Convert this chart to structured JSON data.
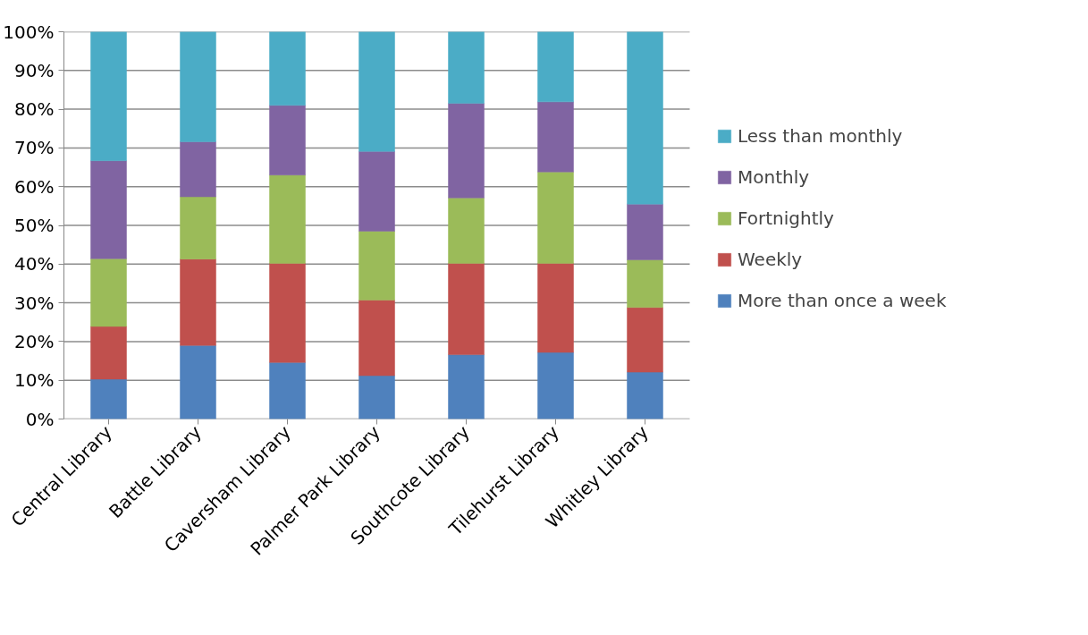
{
  "chart_data": {
    "type": "bar",
    "stacked": true,
    "categories": [
      "Central Library",
      "Battle Library",
      "Caversham Library",
      "Palmer Park Library",
      "Southcote Library",
      "Tilehurst Library",
      "Whitley Library"
    ],
    "series": [
      {
        "name": "More than once a week",
        "color": "#4f81bd",
        "values": [
          10.3,
          19.0,
          14.6,
          11.2,
          16.6,
          17.2,
          12.1
        ]
      },
      {
        "name": "Weekly",
        "color": "#c0504d",
        "values": [
          13.6,
          22.3,
          25.6,
          19.5,
          23.6,
          23.0,
          16.7
        ]
      },
      {
        "name": "Fortnightly",
        "color": "#9bbb59",
        "values": [
          17.5,
          16.1,
          22.8,
          17.8,
          16.9,
          23.6,
          12.3
        ]
      },
      {
        "name": "Monthly",
        "color": "#8064a2",
        "values": [
          25.3,
          14.2,
          18.0,
          20.6,
          24.4,
          18.1,
          14.4
        ]
      },
      {
        "name": "Less than monthly",
        "color": "#4bacc6",
        "values": [
          33.3,
          28.4,
          19.0,
          30.9,
          18.5,
          18.1,
          44.5
        ]
      }
    ],
    "ylim": [
      0,
      100
    ],
    "yticks": [
      {
        "value": 0,
        "label": "0%"
      },
      {
        "value": 10,
        "label": "10%"
      },
      {
        "value": 20,
        "label": "20%"
      },
      {
        "value": 30,
        "label": "30%"
      },
      {
        "value": 40,
        "label": "40%"
      },
      {
        "value": 50,
        "label": "50%"
      },
      {
        "value": 60,
        "label": "60%"
      },
      {
        "value": 70,
        "label": "70%"
      },
      {
        "value": 80,
        "label": "80%"
      },
      {
        "value": 90,
        "label": "90%"
      },
      {
        "value": 100,
        "label": "100%"
      }
    ],
    "grid": "y",
    "legend": "right"
  }
}
